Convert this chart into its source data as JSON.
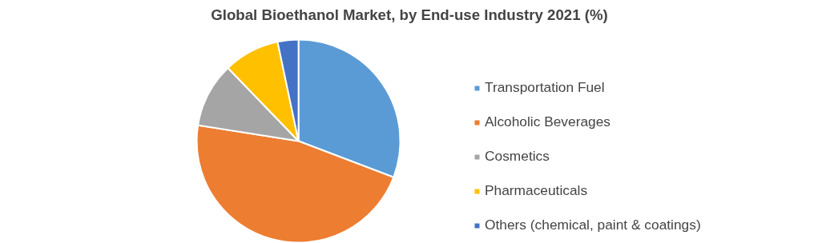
{
  "chart_data": {
    "type": "pie",
    "title": "Global Bioethanol Market, by End-use Industry 2021 (%)",
    "categories": [
      "Transportation Fuel",
      "Alcoholic Beverages",
      "Cosmetics",
      "Pharmaceuticals",
      "Others (chemical, paint & coatings)"
    ],
    "values": [
      30.8,
      46.7,
      10.3,
      8.9,
      3.3
    ],
    "colors": [
      "#5b9bd5",
      "#ed7d31",
      "#a5a5a5",
      "#ffc000",
      "#4472c4"
    ],
    "legend": "right"
  }
}
